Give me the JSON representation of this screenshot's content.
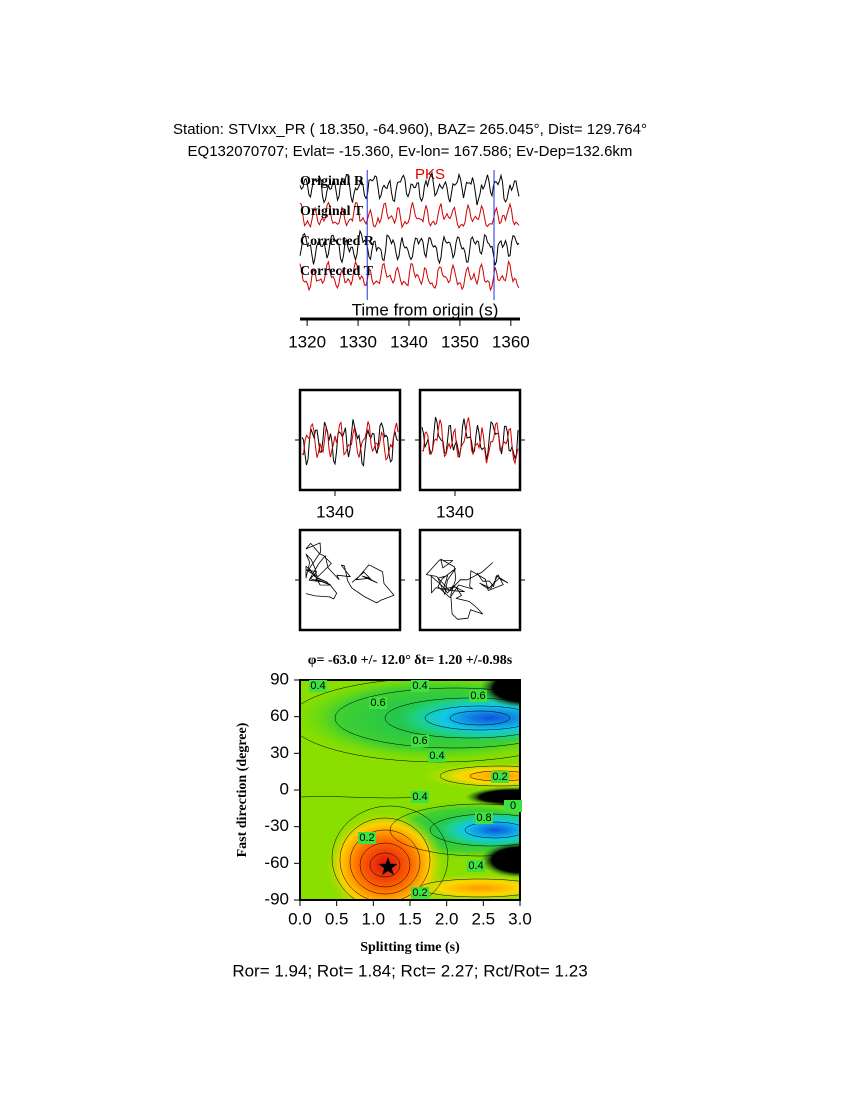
{
  "header": {
    "station": "Station: STVIxx_PR (  18.350,  -64.960), BAZ=  265.045°, Dist=  129.764°",
    "event": "EQ132070707; Evlat= -15.360, Ev-lon= 167.586; Ev-Dep=132.6km"
  },
  "traces": {
    "labels": [
      "Original R",
      "Original T",
      "Corrected R",
      "Corrected T"
    ],
    "phase": "PKS",
    "xlabel": "Time from origin (s)",
    "xlim": [
      1318.6,
      1361.8
    ],
    "xticks": [
      1320,
      1330,
      1340,
      1350,
      1360
    ],
    "picks": [
      1331.8,
      1356.7
    ]
  },
  "windows": {
    "xticks": [
      1340,
      1340
    ]
  },
  "grid_search": {
    "title": "φ= -63.0 +/- 12.0° δt= 1.20 +/-0.98s",
    "xlabel": "Splitting time (s)",
    "ylabel": "Fast direction (degree)",
    "xlim": [
      0,
      3
    ],
    "ylim": [
      -90,
      90
    ],
    "xticks": [
      {
        "value": 0,
        "label": "0.0"
      },
      {
        "value": 0.5,
        "label": "0.5"
      },
      {
        "value": 1,
        "label": "1.0"
      },
      {
        "value": 1.5,
        "label": "1.5"
      },
      {
        "value": 2,
        "label": "2.0"
      },
      {
        "value": 2.5,
        "label": "2.5"
      },
      {
        "value": 3,
        "label": "3.0"
      }
    ],
    "yticks": [
      -90,
      -60,
      -30,
      0,
      30,
      60,
      90
    ],
    "best": {
      "x": 1.2,
      "y": -63
    },
    "contour_labels": [
      "0.4",
      "0.4",
      "0.6",
      "0.6",
      "0.6",
      "0.4",
      "0.2",
      "0.4",
      "0",
      "0.8",
      "0.2",
      "0.4",
      "0.2"
    ]
  },
  "footer": "Ror= 1.94; Rot= 1.84; Rct= 2.27; Rct/Rot= 1.23"
}
